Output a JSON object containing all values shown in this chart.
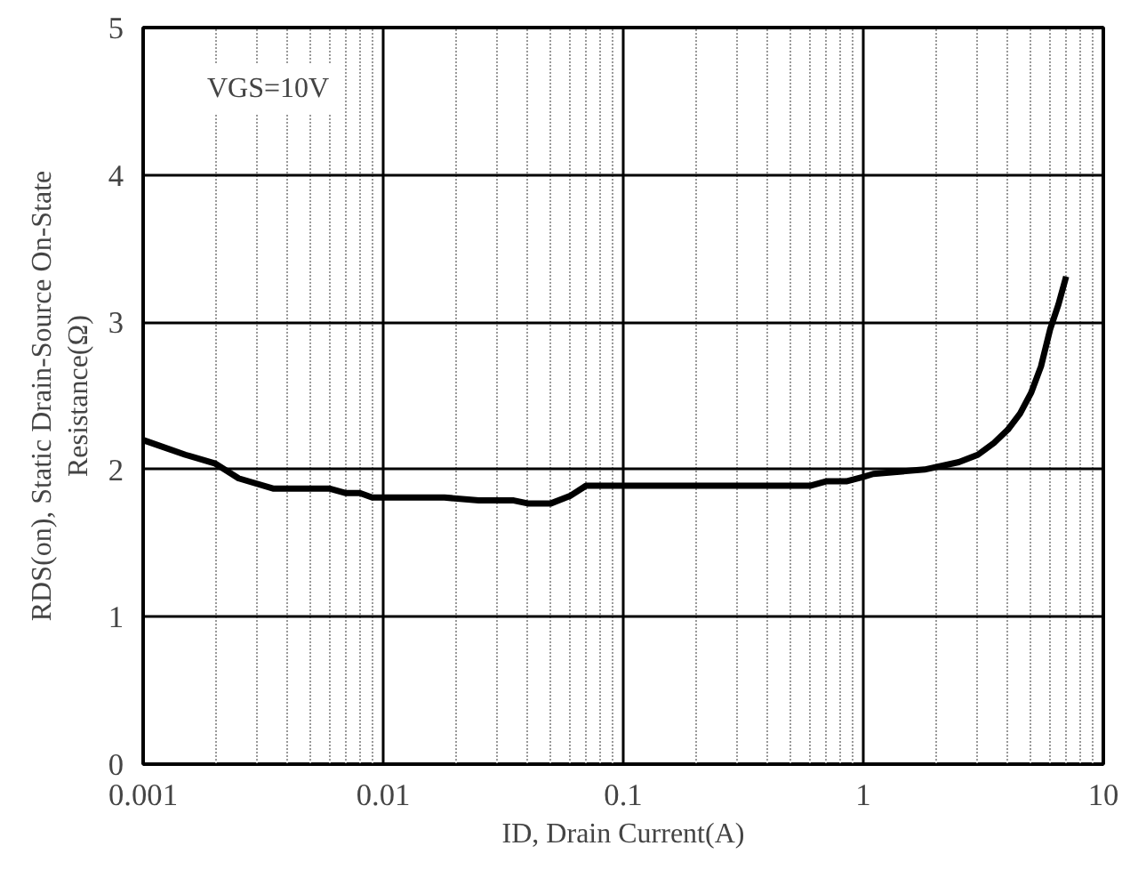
{
  "chart_data": {
    "type": "line",
    "xlabel": "ID, Drain Current(A)",
    "ylabel": "RDS(on), Static Drain-Source On-State\nResistance(Ω)",
    "annotations": [
      "VGS=10V"
    ],
    "log": "x",
    "grid": true,
    "marker": "none",
    "line_style": "solid",
    "xlim": [
      0.001,
      10
    ],
    "xticks": [
      0.001,
      0.01,
      0.1,
      1,
      10
    ],
    "ylim": [
      0,
      5
    ],
    "yticks": [
      0,
      1,
      2,
      3,
      4,
      5
    ],
    "series": [
      {
        "color": "#000000",
        "x": [
          0.001,
          0.0015,
          0.002,
          0.0025,
          0.0035,
          0.006,
          0.007,
          0.008,
          0.009,
          0.018,
          0.025,
          0.035,
          0.04,
          0.05,
          0.06,
          0.07,
          0.6,
          0.7,
          0.85,
          1.0,
          1.1,
          1.8,
          2.5,
          3,
          3.5,
          4,
          4.5,
          5,
          5.5,
          6,
          6.5,
          7
        ],
        "values": [
          2.2,
          2.1,
          2.04,
          1.94,
          1.87,
          1.87,
          1.84,
          1.84,
          1.81,
          1.81,
          1.79,
          1.79,
          1.77,
          1.77,
          1.82,
          1.89,
          1.89,
          1.92,
          1.92,
          1.95,
          1.97,
          2.0,
          2.05,
          2.1,
          2.18,
          2.27,
          2.38,
          2.52,
          2.7,
          2.95,
          3.12,
          3.31
        ]
      }
    ]
  }
}
